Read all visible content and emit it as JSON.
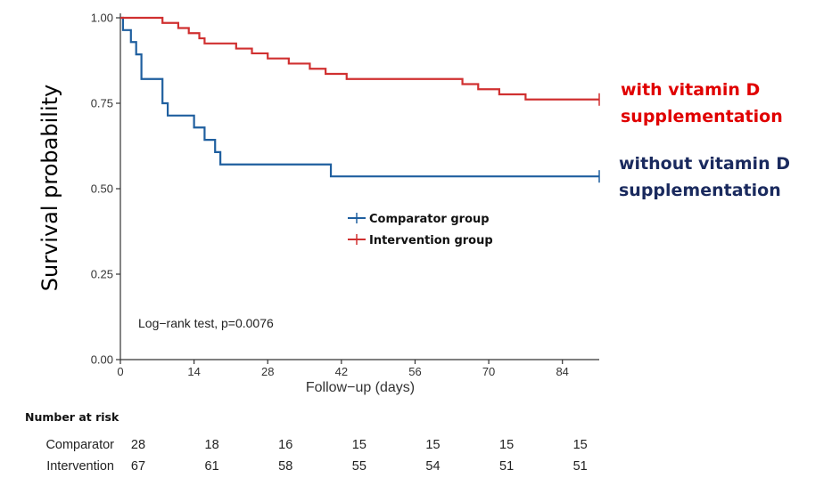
{
  "chart_data": {
    "type": "line",
    "xlabel": "Follow−up (days)",
    "ylabel": "Survival probability",
    "xlim": [
      0,
      91
    ],
    "ylim": [
      0,
      1
    ],
    "x_ticks": [
      0,
      14,
      28,
      42,
      56,
      70,
      84
    ],
    "x_tick_labels": [
      "0",
      "14",
      "28",
      "42",
      "56",
      "70",
      "84"
    ],
    "y_ticks": [
      0,
      0.25,
      0.5,
      0.75,
      1
    ],
    "y_tick_labels": [
      "0.00",
      "0.25",
      "0.50",
      "0.75",
      "1.00"
    ],
    "grid": false,
    "legend_position": "center",
    "annotation": "Log−rank test, p=0.0076",
    "series": [
      {
        "name": "Comparator group",
        "color": "#1f5f9f",
        "steps": [
          [
            0,
            1.0
          ],
          [
            0.5,
            0.964
          ],
          [
            2,
            0.929
          ],
          [
            3,
            0.893
          ],
          [
            4,
            0.821
          ],
          [
            8,
            0.75
          ],
          [
            9,
            0.714
          ],
          [
            14,
            0.679
          ],
          [
            16,
            0.643
          ],
          [
            18,
            0.607
          ],
          [
            19,
            0.571
          ],
          [
            40,
            0.536
          ],
          [
            91,
            0.536
          ]
        ],
        "censor_x": [
          91
        ]
      },
      {
        "name": "Intervention group",
        "color": "#d03030",
        "steps": [
          [
            0,
            1.0
          ],
          [
            8,
            0.985
          ],
          [
            11,
            0.97
          ],
          [
            13,
            0.955
          ],
          [
            15,
            0.94
          ],
          [
            16,
            0.925
          ],
          [
            22,
            0.91
          ],
          [
            25,
            0.896
          ],
          [
            28,
            0.881
          ],
          [
            32,
            0.866
          ],
          [
            36,
            0.851
          ],
          [
            39,
            0.836
          ],
          [
            43,
            0.821
          ],
          [
            65,
            0.806
          ],
          [
            68,
            0.791
          ],
          [
            72,
            0.776
          ],
          [
            77,
            0.761
          ],
          [
            91,
            0.761
          ]
        ],
        "censor_x": [
          91
        ]
      }
    ]
  },
  "side_labels": {
    "with": [
      "with vitamin D",
      "supplementation"
    ],
    "without": [
      "without vitamin D",
      "supplementation"
    ],
    "with_color": "#e00000",
    "without_color": "#1a2a5e"
  },
  "risk_table": {
    "title": "Number at risk",
    "rows": [
      {
        "label": "Comparator",
        "values": [
          "28",
          "18",
          "16",
          "15",
          "15",
          "15",
          "15"
        ]
      },
      {
        "label": "Intervention",
        "values": [
          "67",
          "61",
          "58",
          "55",
          "54",
          "51",
          "51"
        ]
      }
    ]
  }
}
